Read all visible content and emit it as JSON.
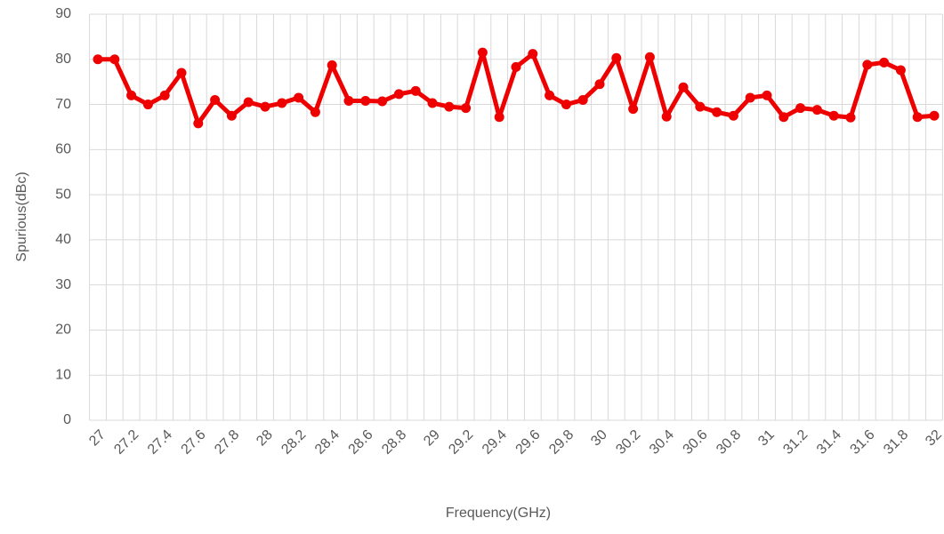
{
  "chart_data": {
    "type": "line",
    "x_label": "Frequency(GHz)",
    "y_label": "Spurious(dBc)",
    "categories": [
      27,
      null,
      27.2,
      null,
      27.4,
      null,
      27.6,
      null,
      27.8,
      null,
      28,
      null,
      28.2,
      null,
      28.4,
      null,
      28.6,
      null,
      28.8,
      null,
      29,
      null,
      29.2,
      null,
      29.4,
      null,
      29.6,
      null,
      29.8,
      null,
      30,
      null,
      30.2,
      null,
      30.4,
      null,
      30.6,
      null,
      30.8,
      null,
      31,
      null,
      31.2,
      null,
      31.4,
      null,
      31.6,
      null,
      31.8,
      null,
      32
    ],
    "values": [
      80,
      80,
      72,
      70,
      72,
      77,
      65.8,
      71,
      67.5,
      70.5,
      69.5,
      70.3,
      71.5,
      68.3,
      78.7,
      70.8,
      70.8,
      70.7,
      72.3,
      73,
      70.3,
      69.5,
      69.2,
      81.5,
      67.2,
      78.3,
      81.2,
      72,
      70,
      71,
      74.5,
      80.3,
      69,
      80.5,
      67.3,
      73.8,
      69.5,
      68.3,
      67.5,
      71.5,
      72,
      67.2,
      69.2,
      68.8,
      67.5,
      67.1,
      78.8,
      79.3,
      77.6,
      67.2,
      67.5
    ],
    "color": "#ee0000",
    "ylim": [
      0,
      90
    ],
    "yticks": [
      0,
      10,
      20,
      30,
      40,
      50,
      60,
      70,
      80,
      90
    ],
    "grid": true
  }
}
